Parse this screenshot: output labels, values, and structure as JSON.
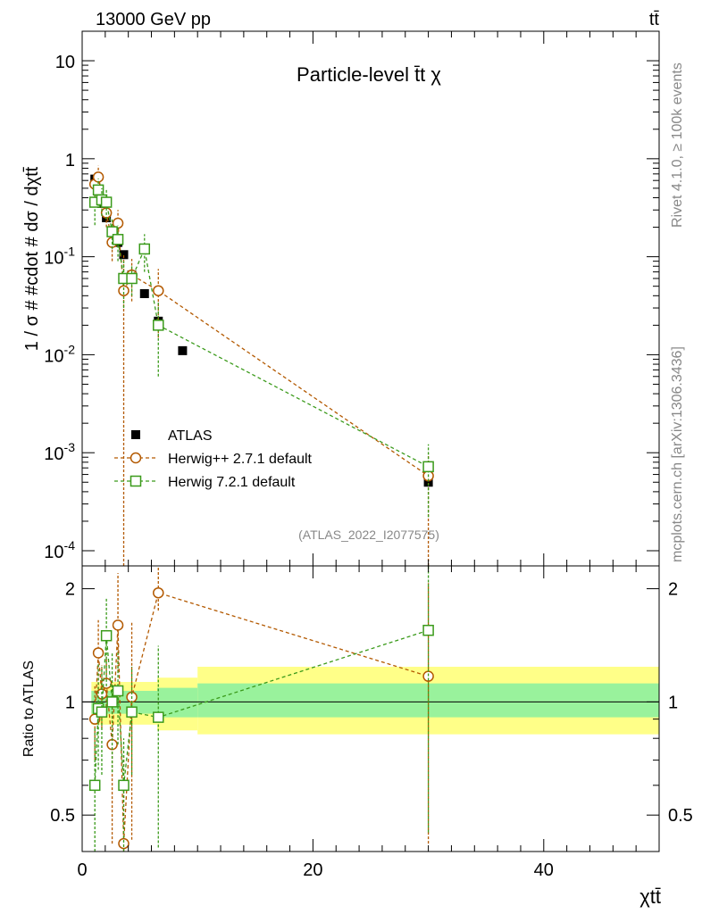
{
  "header": {
    "energy_label": "13000 GeV pp",
    "process_label": "tt̄"
  },
  "side": {
    "rivet_label": "Rivet 4.1.0, ≥ 100k events",
    "mcplots_label": "mcplots.cern.ch [arXiv:1306.3436]"
  },
  "colors": {
    "atlas": "#000000",
    "herwigpp": "#b35900",
    "herwig7": "#3a9a1a",
    "band_inner": "#99f29c",
    "band_outer": "#ffff88"
  },
  "chart_data": [
    {
      "type": "scatter",
      "panel": "main",
      "title": "Particle-level t̄t χ",
      "xlabel": "χtt̄",
      "ylabel": "1 / σ # #cdot # dσ / dχtt̄",
      "yscale": "log",
      "xlim": [
        0,
        50
      ],
      "ylim": [
        7e-05,
        20
      ],
      "ytick_labels": [
        "10",
        "1",
        "10^-1",
        "10^-2",
        "10^-3",
        "10^-4"
      ],
      "watermark": "(ATLAS_2022_I2077575)",
      "legend_position": "center-left",
      "series": [
        {
          "name": "ATLAS",
          "key": "atlas",
          "marker": "filled-square",
          "x": [
            1.1,
            1.4,
            1.7,
            2.1,
            2.6,
            3.1,
            3.6,
            4.3,
            5.4,
            6.6,
            8.7,
            30.0
          ],
          "y": [
            0.62,
            0.48,
            0.35,
            0.25,
            0.18,
            0.14,
            0.105,
            0.065,
            0.042,
            0.022,
            0.011,
            0.0005
          ]
        },
        {
          "name": "Herwig++ 2.7.1 default",
          "key": "herwigpp",
          "marker": "open-circle",
          "x": [
            1.1,
            1.4,
            1.7,
            2.1,
            2.6,
            3.1,
            3.6,
            4.3,
            6.6,
            30.0
          ],
          "y": [
            0.55,
            0.65,
            0.38,
            0.28,
            0.14,
            0.22,
            0.045,
            0.065,
            0.045,
            0.00058
          ],
          "yerr_low": [
            0.15,
            0.2,
            0.1,
            0.08,
            0.05,
            0.08,
            0.045,
            0.03,
            0.03,
            0.00058
          ],
          "yerr_high": [
            0.15,
            0.2,
            0.1,
            0.08,
            0.05,
            0.08,
            0.06,
            0.03,
            0.03,
            0.0004
          ]
        },
        {
          "name": "Herwig 7.2.1 default",
          "key": "herwig7",
          "marker": "open-square",
          "x": [
            1.1,
            1.4,
            1.7,
            2.1,
            2.6,
            3.1,
            3.6,
            4.3,
            5.4,
            6.6,
            30.0
          ],
          "y": [
            0.36,
            0.48,
            0.38,
            0.36,
            0.18,
            0.15,
            0.06,
            0.06,
            0.12,
            0.02,
            0.00072
          ],
          "yerr_low": [
            0.15,
            0.15,
            0.12,
            0.12,
            0.06,
            0.06,
            0.03,
            0.02,
            0.05,
            0.014,
            0.0005
          ],
          "yerr_high": [
            0.15,
            0.15,
            0.12,
            0.12,
            0.06,
            0.06,
            0.03,
            0.02,
            0.05,
            0.014,
            0.0005
          ]
        }
      ]
    },
    {
      "type": "scatter",
      "panel": "ratio",
      "ylabel": "Ratio to ATLAS",
      "xlabel": "χtt̄",
      "xlim": [
        0,
        50
      ],
      "ylim": [
        0.4,
        2.3
      ],
      "ytick_labels": [
        "2",
        "1",
        "0.5"
      ],
      "xtick_labels": [
        "0",
        "20",
        "40"
      ],
      "reference_line": 1,
      "bands": [
        {
          "x_from": 0.8,
          "x_to": 6.5,
          "inner": [
            0.93,
            1.07
          ],
          "outer": [
            0.87,
            1.13
          ]
        },
        {
          "x_from": 6.5,
          "x_to": 10.0,
          "inner": [
            0.91,
            1.09
          ],
          "outer": [
            0.84,
            1.16
          ]
        },
        {
          "x_from": 10.0,
          "x_to": 50.0,
          "inner": [
            0.91,
            1.12
          ],
          "outer": [
            0.82,
            1.24
          ]
        }
      ],
      "series": [
        {
          "name": "Herwig++ 2.7.1 default",
          "key": "herwigpp",
          "marker": "open-circle",
          "x": [
            1.1,
            1.4,
            1.7,
            2.1,
            2.6,
            3.1,
            3.6,
            4.3,
            6.6,
            30.0
          ],
          "y": [
            0.9,
            1.35,
            1.05,
            1.12,
            0.77,
            1.6,
            0.42,
            1.03,
            1.95,
            1.17
          ],
          "yerr_low": [
            0.2,
            0.3,
            0.2,
            0.2,
            0.35,
            0.4,
            0.3,
            0.6,
            0.2,
            0.75
          ],
          "yerr_high": [
            0.2,
            0.3,
            0.2,
            0.2,
            0.35,
            0.6,
            0.3,
            0.6,
            0.6,
            0.9
          ]
        },
        {
          "name": "Herwig 7.2.1 default",
          "key": "herwig7",
          "marker": "open-square",
          "x": [
            1.1,
            1.4,
            1.7,
            2.1,
            2.6,
            3.1,
            3.6,
            4.3,
            6.6,
            30.0
          ],
          "y": [
            0.6,
            0.96,
            0.94,
            1.5,
            1.0,
            1.07,
            0.6,
            0.94,
            0.91,
            1.55
          ],
          "yerr_low": [
            0.25,
            0.3,
            0.3,
            0.4,
            0.35,
            0.3,
            0.2,
            0.3,
            0.5,
            1.1
          ],
          "yerr_high": [
            0.25,
            0.3,
            0.3,
            0.4,
            0.35,
            0.3,
            0.2,
            0.3,
            0.5,
            0.9
          ]
        }
      ]
    }
  ]
}
